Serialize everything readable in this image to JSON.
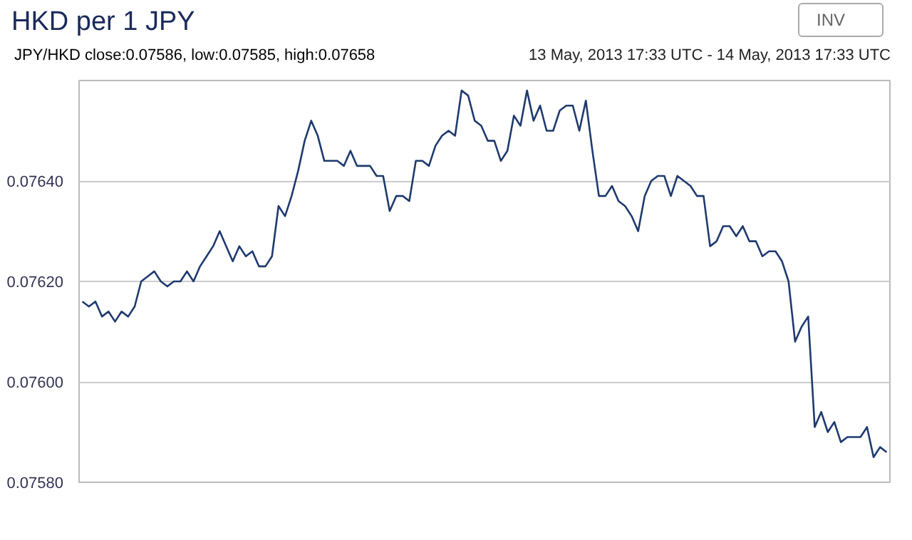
{
  "chart_data": {
    "type": "line",
    "title": "HKD per 1 JPY",
    "subtitle": "JPY/HKD   close:0.07586, low:0.07585, high:0.07658",
    "annotations": [
      "13 May, 2013 17:33 UTC - 14 May, 2013 17:33 UTC",
      "INV"
    ],
    "categories": [
      null,
      null,
      null,
      null,
      null,
      null,
      null,
      null,
      null,
      null,
      null,
      null,
      null,
      null,
      null,
      null,
      null,
      null,
      null,
      null,
      null,
      null,
      null,
      null,
      null,
      null,
      null,
      null,
      null,
      null,
      null,
      null,
      null,
      null,
      null,
      null,
      null,
      null,
      null,
      null,
      null,
      null,
      null,
      null,
      null,
      null,
      null,
      null,
      null,
      null,
      null,
      null,
      null,
      null,
      null,
      null,
      null,
      null,
      null,
      null,
      null,
      null,
      null,
      null,
      null,
      null,
      null,
      null,
      null,
      null,
      null,
      null,
      null,
      null,
      null,
      null,
      null,
      null,
      null,
      null,
      null,
      null,
      null,
      null,
      null,
      null,
      null,
      null,
      null,
      null,
      null,
      null,
      null,
      null,
      null,
      null,
      null,
      null,
      null,
      null,
      null,
      null,
      null,
      null,
      null,
      null,
      null,
      null,
      null,
      null,
      null,
      null,
      null,
      null,
      null,
      null,
      null,
      null,
      null,
      null,
      null,
      null,
      null,
      null
    ],
    "series": [
      {
        "color": "#1f3a6e",
        "values": [
          0.07616,
          0.07615,
          0.07616,
          0.07613,
          0.07614,
          0.07612,
          0.07614,
          0.07613,
          0.07615,
          0.0762,
          0.07621,
          0.07622,
          0.0762,
          0.07619,
          0.0762,
          0.0762,
          0.07622,
          0.0762,
          0.07623,
          0.07625,
          0.07627,
          0.0763,
          0.07627,
          0.07624,
          0.07627,
          0.07625,
          0.07626,
          0.07623,
          0.07623,
          0.07625,
          0.07635,
          0.07633,
          0.07637,
          0.07642,
          0.07648,
          0.07652,
          0.07649,
          0.07644,
          0.07644,
          0.07644,
          0.07643,
          0.07646,
          0.07643,
          0.07643,
          0.07643,
          0.07641,
          0.07641,
          0.07634,
          0.07637,
          0.07637,
          0.07636,
          0.07644,
          0.07644,
          0.07643,
          0.07647,
          0.07649,
          0.0765,
          0.07649,
          0.07658,
          0.07657,
          0.07652,
          0.07651,
          0.07648,
          0.07648,
          0.07644,
          0.07646,
          0.07653,
          0.07651,
          0.07658,
          0.07652,
          0.07655,
          0.0765,
          0.0765,
          0.07654,
          0.07655,
          0.07655,
          0.0765,
          0.07656,
          0.07646,
          0.07637,
          0.07637,
          0.07639,
          0.07636,
          0.07635,
          0.07633,
          0.0763,
          0.07637,
          0.0764,
          0.07641,
          0.07641,
          0.07637,
          0.07641,
          0.0764,
          0.07639,
          0.07637,
          0.07637,
          0.07627,
          0.07628,
          0.07631,
          0.07631,
          0.07629,
          0.07631,
          0.07628,
          0.07628,
          0.07625,
          0.07626,
          0.07626,
          0.07624,
          0.0762,
          0.07608,
          0.07611,
          0.07613,
          0.07591,
          0.07594,
          0.0759,
          0.07592,
          0.07588,
          0.07589,
          0.07589,
          0.07589,
          0.07591,
          0.07585,
          0.07587,
          0.07586
        ]
      }
    ],
    "ylim": [
      0.0758,
      0.0766
    ],
    "yticks": [
      {
        "value": 0.0758,
        "label": "0.07580"
      },
      {
        "value": 0.076,
        "label": "0.07600"
      },
      {
        "value": 0.0762,
        "label": "0.07620"
      },
      {
        "value": 0.0764,
        "label": "0.07640"
      }
    ],
    "grid": "y"
  }
}
